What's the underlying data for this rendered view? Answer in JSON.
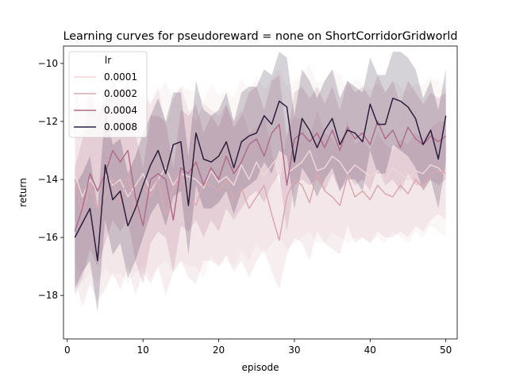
{
  "chart_data": {
    "type": "line",
    "title": "Learning curves for pseudoreward = none on ShortCorridorGridworld",
    "xlabel": "episode",
    "ylabel": "return",
    "xlim": [
      -0.5,
      51.5
    ],
    "ylim": [
      -19.5,
      -9.4
    ],
    "xticks": [
      0,
      10,
      20,
      30,
      40,
      50
    ],
    "yticks": [
      -18,
      -16,
      -14,
      -12,
      -10
    ],
    "legend": {
      "title": "lr",
      "placement": "top-left"
    },
    "grid": false,
    "confidence_bands": true,
    "x": [
      1,
      2,
      3,
      4,
      5,
      6,
      7,
      8,
      9,
      10,
      11,
      12,
      13,
      14,
      15,
      16,
      17,
      18,
      19,
      20,
      21,
      22,
      23,
      24,
      25,
      26,
      27,
      28,
      29,
      30,
      31,
      32,
      33,
      34,
      35,
      36,
      37,
      38,
      39,
      40,
      41,
      42,
      43,
      44,
      45,
      46,
      47,
      48,
      49,
      50
    ],
    "series": [
      {
        "name": "0.0001",
        "color": "#f0d5d8",
        "values": [
          -13.8,
          -14.6,
          -14.0,
          -14.4,
          -13.8,
          -14.2,
          -14.0,
          -14.6,
          -14.2,
          -13.8,
          -14.4,
          -14.0,
          -13.6,
          -14.2,
          -13.8,
          -13.9,
          -14.0,
          -14.3,
          -13.7,
          -14.1,
          -13.9,
          -14.2,
          -13.5,
          -14.0,
          -13.4,
          -13.9,
          -13.5,
          -13.2,
          -13.8,
          -13.6,
          -13.4,
          -13.0,
          -13.7,
          -13.6,
          -13.2,
          -13.4,
          -13.8,
          -13.5,
          -13.7,
          -13.9,
          -13.7,
          -14.0,
          -13.6,
          -13.8,
          -14.0,
          -13.7,
          -13.8,
          -13.5,
          -13.6,
          -13.9
        ],
        "lower": [
          -16.8,
          -17.6,
          -17.2,
          -17.6,
          -17.0,
          -17.4,
          -17.2,
          -17.6,
          -17.2,
          -17.0,
          -17.4,
          -17.0,
          -16.8,
          -17.2,
          -16.8,
          -17.0,
          -17.0,
          -17.4,
          -16.6,
          -17.0,
          -16.8,
          -17.0,
          -16.4,
          -16.8,
          -16.2,
          -16.6,
          -16.2,
          -16.0,
          -16.4,
          -16.2,
          -16.0,
          -15.8,
          -16.2,
          -16.2,
          -15.8,
          -16.0,
          -16.2,
          -16.0,
          -16.0,
          -16.2,
          -16.0,
          -16.2,
          -15.8,
          -16.0,
          -16.2,
          -15.8,
          -16.0,
          -15.6,
          -15.8,
          -16.0
        ],
        "upper": [
          -11.0,
          -11.8,
          -11.0,
          -11.4,
          -10.8,
          -11.2,
          -11.0,
          -11.6,
          -11.2,
          -10.8,
          -11.4,
          -11.0,
          -10.6,
          -11.2,
          -10.8,
          -10.9,
          -11.0,
          -11.3,
          -10.7,
          -11.1,
          -10.9,
          -11.2,
          -10.5,
          -11.0,
          -10.4,
          -10.9,
          -10.5,
          -10.2,
          -10.8,
          -10.6,
          -10.4,
          -10.0,
          -10.7,
          -10.6,
          -10.2,
          -10.4,
          -10.8,
          -10.5,
          -10.7,
          -10.9,
          -10.7,
          -11.0,
          -10.6,
          -10.8,
          -11.0,
          -10.7,
          -10.8,
          -10.5,
          -10.6,
          -10.9
        ]
      },
      {
        "name": "0.0002",
        "color": "#d9a8b2",
        "values": [
          -14.0,
          -15.2,
          -14.2,
          -15.0,
          -14.6,
          -14.0,
          -14.8,
          -13.9,
          -15.0,
          -14.2,
          -14.6,
          -14.0,
          -15.2,
          -14.3,
          -13.8,
          -14.6,
          -14.9,
          -14.1,
          -14.2,
          -14.4,
          -14.0,
          -14.7,
          -14.3,
          -15.0,
          -14.6,
          -14.2,
          -15.2,
          -16.1,
          -14.6,
          -14.0,
          -14.2,
          -14.8,
          -13.8,
          -14.4,
          -14.6,
          -14.9,
          -13.9,
          -14.6,
          -14.4,
          -14.7,
          -14.2,
          -14.5,
          -14.6,
          -14.2,
          -14.5,
          -14.0,
          -14.3,
          -13.8,
          -13.7,
          -13.8
        ],
        "lower": [
          -17.4,
          -18.4,
          -17.6,
          -18.2,
          -17.8,
          -17.2,
          -17.8,
          -17.0,
          -18.0,
          -17.2,
          -17.6,
          -17.0,
          -18.0,
          -17.2,
          -16.8,
          -17.4,
          -17.6,
          -16.8,
          -16.8,
          -17.0,
          -16.6,
          -17.2,
          -16.8,
          -17.4,
          -16.8,
          -16.4,
          -17.2,
          -17.8,
          -16.6,
          -16.0,
          -16.2,
          -16.8,
          -15.8,
          -16.2,
          -16.4,
          -16.6,
          -15.6,
          -16.2,
          -16.0,
          -16.2,
          -15.8,
          -16.0,
          -16.0,
          -15.8,
          -16.0,
          -15.6,
          -15.8,
          -15.4,
          -15.2,
          -15.4
        ],
        "upper": [
          -10.8,
          -11.8,
          -10.8,
          -11.6,
          -11.2,
          -10.8,
          -11.6,
          -10.6,
          -11.8,
          -11.0,
          -11.4,
          -10.8,
          -12.2,
          -11.2,
          -10.8,
          -11.6,
          -12.0,
          -11.4,
          -11.6,
          -11.8,
          -11.4,
          -12.0,
          -11.6,
          -12.4,
          -12.2,
          -11.8,
          -13.0,
          -14.2,
          -12.4,
          -11.8,
          -12.0,
          -12.6,
          -11.6,
          -12.4,
          -12.6,
          -13.0,
          -12.0,
          -12.8,
          -12.6,
          -13.0,
          -12.4,
          -12.8,
          -13.0,
          -12.6,
          -12.8,
          -12.4,
          -12.6,
          -12.2,
          -12.0,
          -12.0
        ]
      },
      {
        "name": "0.0004",
        "color": "#b06d8c",
        "values": [
          -15.8,
          -15.0,
          -13.8,
          -14.4,
          -13.8,
          -13.0,
          -13.4,
          -13.0,
          -14.6,
          -15.6,
          -14.0,
          -13.8,
          -14.0,
          -15.4,
          -13.6,
          -13.8,
          -13.4,
          -14.2,
          -13.6,
          -14.0,
          -13.2,
          -13.8,
          -13.4,
          -12.8,
          -12.6,
          -13.2,
          -12.4,
          -12.1,
          -14.2,
          -12.6,
          -12.4,
          -12.7,
          -12.4,
          -12.9,
          -12.3,
          -13.0,
          -12.2,
          -12.6,
          -12.4,
          -12.8,
          -12.0,
          -12.6,
          -12.3,
          -12.9,
          -12.2,
          -12.6,
          -12.8,
          -12.5,
          -12.7,
          -12.5
        ],
        "lower": [
          -18.0,
          -17.4,
          -16.4,
          -17.0,
          -16.2,
          -15.4,
          -15.8,
          -15.4,
          -16.8,
          -17.6,
          -16.2,
          -15.8,
          -16.0,
          -17.2,
          -15.6,
          -15.8,
          -15.4,
          -16.0,
          -15.4,
          -15.8,
          -15.0,
          -15.4,
          -15.0,
          -14.6,
          -14.4,
          -14.8,
          -14.2,
          -13.8,
          -15.8,
          -14.2,
          -14.0,
          -14.2,
          -14.0,
          -14.4,
          -13.8,
          -14.4,
          -13.8,
          -14.2,
          -14.0,
          -14.4,
          -13.6,
          -14.2,
          -14.0,
          -14.4,
          -13.8,
          -14.2,
          -14.2,
          -14.0,
          -14.2,
          -14.0
        ],
        "upper": [
          -13.6,
          -12.6,
          -11.2,
          -11.8,
          -11.4,
          -10.6,
          -11.0,
          -10.6,
          -12.4,
          -13.6,
          -11.8,
          -11.8,
          -12.0,
          -13.6,
          -11.6,
          -11.8,
          -11.4,
          -12.4,
          -11.8,
          -12.2,
          -11.4,
          -12.2,
          -11.8,
          -11.0,
          -10.8,
          -11.6,
          -10.6,
          -10.4,
          -12.6,
          -11.0,
          -10.8,
          -11.2,
          -10.8,
          -11.4,
          -10.8,
          -11.6,
          -10.6,
          -11.0,
          -10.8,
          -11.2,
          -10.4,
          -11.0,
          -10.6,
          -11.4,
          -10.6,
          -11.0,
          -11.4,
          -11.0,
          -11.2,
          -11.0
        ]
      },
      {
        "name": "0.0008",
        "color": "#2d1e3e",
        "values": [
          -16.0,
          -15.5,
          -15.0,
          -16.8,
          -13.5,
          -14.7,
          -14.4,
          -15.6,
          -15.0,
          -14.2,
          -13.5,
          -13.0,
          -13.8,
          -12.8,
          -12.7,
          -14.9,
          -12.4,
          -13.3,
          -13.4,
          -13.2,
          -12.7,
          -13.6,
          -12.7,
          -12.5,
          -12.4,
          -11.8,
          -12.1,
          -11.3,
          -11.5,
          -13.4,
          -11.9,
          -12.3,
          -12.9,
          -12.3,
          -11.9,
          -12.8,
          -12.3,
          -12.4,
          -12.7,
          -11.4,
          -12.1,
          -12.1,
          -11.2,
          -11.3,
          -11.5,
          -11.9,
          -12.8,
          -12.3,
          -13.3,
          -11.8
        ],
        "lower": [
          -17.8,
          -17.2,
          -16.8,
          -18.6,
          -15.4,
          -16.6,
          -16.2,
          -17.4,
          -16.8,
          -16.0,
          -15.2,
          -14.8,
          -15.6,
          -14.6,
          -14.4,
          -16.6,
          -14.2,
          -15.0,
          -15.0,
          -14.8,
          -14.4,
          -15.2,
          -14.4,
          -14.2,
          -14.0,
          -13.4,
          -13.8,
          -13.0,
          -13.2,
          -15.0,
          -13.6,
          -14.0,
          -14.6,
          -14.0,
          -13.6,
          -14.4,
          -14.0,
          -14.0,
          -14.4,
          -13.0,
          -13.8,
          -13.8,
          -12.8,
          -13.0,
          -13.2,
          -13.6,
          -14.4,
          -14.0,
          -15.0,
          -13.4
        ],
        "upper": [
          -14.2,
          -13.8,
          -13.2,
          -15.0,
          -11.6,
          -12.8,
          -12.6,
          -13.8,
          -13.2,
          -12.4,
          -11.8,
          -11.2,
          -12.0,
          -11.0,
          -11.0,
          -13.2,
          -10.6,
          -11.6,
          -11.8,
          -11.6,
          -11.0,
          -12.0,
          -11.0,
          -10.8,
          -10.8,
          -10.2,
          -10.4,
          -9.6,
          -9.8,
          -11.8,
          -10.2,
          -10.6,
          -11.2,
          -10.6,
          -10.2,
          -11.2,
          -10.6,
          -10.8,
          -11.0,
          -9.8,
          -10.4,
          -10.4,
          -9.6,
          -9.6,
          -9.8,
          -10.2,
          -11.2,
          -10.6,
          -11.6,
          -10.2
        ]
      }
    ]
  }
}
